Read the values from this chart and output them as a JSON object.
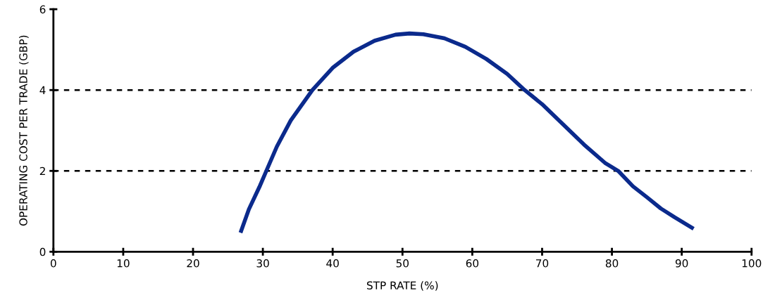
{
  "chart_data": {
    "type": "line",
    "xlabel": "STP RATE (%)",
    "ylabel": "OPERATING COST PER TRADE (GBP)",
    "series": [
      {
        "color": "#0b2a8c",
        "x": [
          26.8,
          28,
          29.5,
          30.5,
          32,
          34,
          37.1,
          40,
          43,
          46,
          49,
          51,
          53,
          56,
          59,
          62,
          65,
          67.5,
          70,
          73,
          76,
          79,
          80.9,
          83,
          85,
          87,
          89,
          91.7
        ],
        "values": [
          0.47,
          1.05,
          1.6,
          2.0,
          2.6,
          3.25,
          4.0,
          4.55,
          4.95,
          5.22,
          5.37,
          5.4,
          5.38,
          5.28,
          5.07,
          4.77,
          4.4,
          4.0,
          3.65,
          3.15,
          2.65,
          2.2,
          2.0,
          1.62,
          1.35,
          1.07,
          0.85,
          0.57
        ]
      }
    ],
    "xlim": [
      0,
      100
    ],
    "xticks": [
      0,
      10,
      20,
      30,
      40,
      50,
      60,
      70,
      80,
      90,
      100
    ],
    "ylim": [
      0,
      6
    ],
    "yticks": [
      0,
      2,
      4,
      6
    ],
    "ref_lines": [
      {
        "axis": "y",
        "value": 2,
        "color": "#000000",
        "line_style": "dashed"
      },
      {
        "axis": "y",
        "value": 4,
        "color": "#000000",
        "line_style": "dashed"
      }
    ],
    "marker": "none",
    "line_style": "solid",
    "grid": false,
    "legend": false
  }
}
